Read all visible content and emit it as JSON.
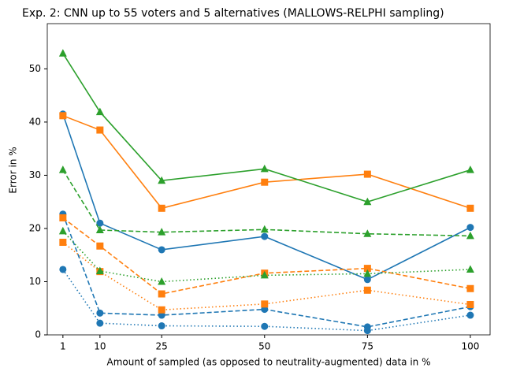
{
  "chart_data": {
    "type": "line",
    "title": "Exp. 2: CNN up to 55 voters and 5 alternatives (MALLOWS-RELPHI sampling)",
    "x_label": "Amount of sampled (as opposed to neutrality-augmented) data in %",
    "y_label": "Error in %",
    "x": [
      1,
      10,
      25,
      50,
      75,
      100
    ],
    "xlim": [
      -2.8,
      104.8
    ],
    "xticks": [
      1,
      10,
      25,
      50,
      75,
      100
    ],
    "ylim": [
      0,
      58.5
    ],
    "yticks": [
      0,
      10,
      20,
      30,
      40,
      50
    ],
    "series": [
      {
        "color": "#1f77b4",
        "linestyle": "solid",
        "marker": "circle",
        "values": [
          41.5,
          21,
          16,
          18.5,
          10.4,
          20.2
        ]
      },
      {
        "color": "#1f77b4",
        "linestyle": "dashed",
        "marker": "circle",
        "values": [
          22.7,
          4.1,
          3.7,
          4.8,
          1.5,
          5.3
        ]
      },
      {
        "color": "#1f77b4",
        "linestyle": "dotted",
        "marker": "circle",
        "values": [
          12.3,
          2.2,
          1.7,
          1.6,
          0.8,
          3.7
        ]
      },
      {
        "color": "#ff7f0e",
        "linestyle": "solid",
        "marker": "square",
        "values": [
          41.2,
          38.5,
          23.8,
          28.7,
          30.2,
          23.8
        ]
      },
      {
        "color": "#ff7f0e",
        "linestyle": "dashed",
        "marker": "square",
        "values": [
          22,
          16.7,
          7.7,
          11.6,
          12.5,
          8.7
        ]
      },
      {
        "color": "#ff7f0e",
        "linestyle": "dotted",
        "marker": "square",
        "values": [
          17.4,
          11.9,
          4.7,
          5.8,
          8.4,
          5.7
        ]
      },
      {
        "color": "#2ca02c",
        "linestyle": "solid",
        "marker": "triangle",
        "values": [
          52.9,
          41.9,
          29,
          31.2,
          25,
          31
        ]
      },
      {
        "color": "#2ca02c",
        "linestyle": "dashed",
        "marker": "triangle",
        "values": [
          31,
          19.7,
          19.3,
          19.8,
          19,
          18.6
        ]
      },
      {
        "color": "#2ca02c",
        "linestyle": "dotted",
        "marker": "triangle",
        "values": [
          19.5,
          12,
          10,
          11.2,
          11.5,
          12.3
        ]
      }
    ]
  }
}
